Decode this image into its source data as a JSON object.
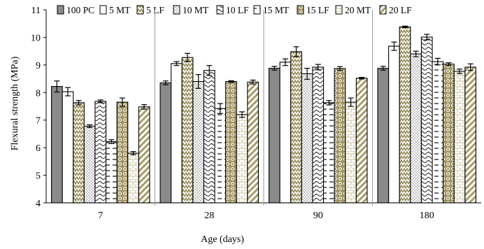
{
  "chart_data": {
    "type": "bar",
    "title": "",
    "xlabel": "Age (days)",
    "ylabel": "Flexural strength (MPa)",
    "ylim": [
      4,
      11
    ],
    "yticks": [
      4,
      5,
      6,
      7,
      8,
      9,
      10,
      11
    ],
    "grid": false,
    "legend_position": "top",
    "categories": [
      "7",
      "28",
      "90",
      "180"
    ],
    "series": [
      {
        "name": "100 PC",
        "values": [
          8.22,
          8.35,
          8.88,
          8.88
        ],
        "errors": [
          0.2,
          0.07,
          0.07,
          0.07
        ],
        "pattern": "solid-gray"
      },
      {
        "name": "5 MT",
        "values": [
          8.03,
          9.05,
          9.1,
          9.68
        ],
        "errors": [
          0.15,
          0.07,
          0.12,
          0.15
        ],
        "pattern": "white"
      },
      {
        "name": "5 LF",
        "values": [
          7.63,
          9.27,
          9.48,
          10.38
        ],
        "errors": [
          0.08,
          0.15,
          0.18,
          0.03
        ],
        "pattern": "zigzag-olive"
      },
      {
        "name": "10 MT",
        "values": [
          6.78,
          8.4,
          8.68,
          9.4
        ],
        "errors": [
          0.05,
          0.25,
          0.2,
          0.1
        ],
        "pattern": "dots-fine"
      },
      {
        "name": "10 LF",
        "values": [
          7.68,
          8.8,
          8.92,
          10.01
        ],
        "errors": [
          0.05,
          0.18,
          0.1,
          0.1
        ],
        "pattern": "wavy"
      },
      {
        "name": "15 MT",
        "values": [
          6.22,
          7.42,
          7.63,
          9.12
        ],
        "errors": [
          0.07,
          0.18,
          0.08,
          0.12
        ],
        "pattern": "dashes"
      },
      {
        "name": "15 LF",
        "values": [
          7.65,
          8.4,
          8.87,
          9.03
        ],
        "errors": [
          0.15,
          0.03,
          0.07,
          0.05
        ],
        "pattern": "circles-olive"
      },
      {
        "name": "20 MT",
        "values": [
          5.8,
          7.2,
          7.65,
          8.77
        ],
        "errors": [
          0.06,
          0.1,
          0.15,
          0.08
        ],
        "pattern": "bricks"
      },
      {
        "name": "20 LF",
        "values": [
          7.48,
          8.38,
          8.52,
          8.92
        ],
        "errors": [
          0.08,
          0.07,
          0.03,
          0.12
        ],
        "pattern": "diagonal-olive"
      }
    ]
  }
}
